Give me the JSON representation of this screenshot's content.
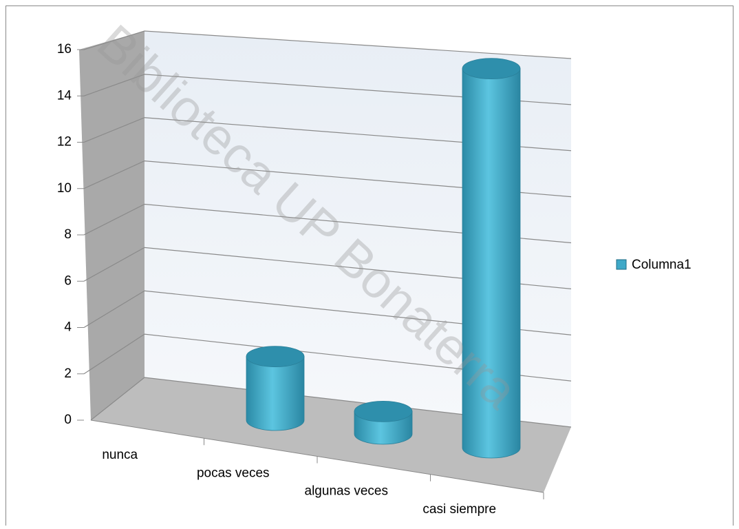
{
  "chart_data": {
    "type": "bar",
    "categories": [
      "nunca",
      "pocas veces",
      "algunas veces",
      "casi siempre"
    ],
    "series": [
      {
        "name": "Columna1",
        "color": "#3fa9c8",
        "values": [
          0,
          3,
          1,
          16
        ]
      }
    ],
    "ylim": [
      0,
      16
    ],
    "yticks": [
      0,
      2,
      4,
      6,
      8,
      10,
      12,
      14,
      16
    ],
    "grid": true,
    "legend": "right",
    "annotations": [
      "Biblioteca UP Bonaterra"
    ]
  }
}
